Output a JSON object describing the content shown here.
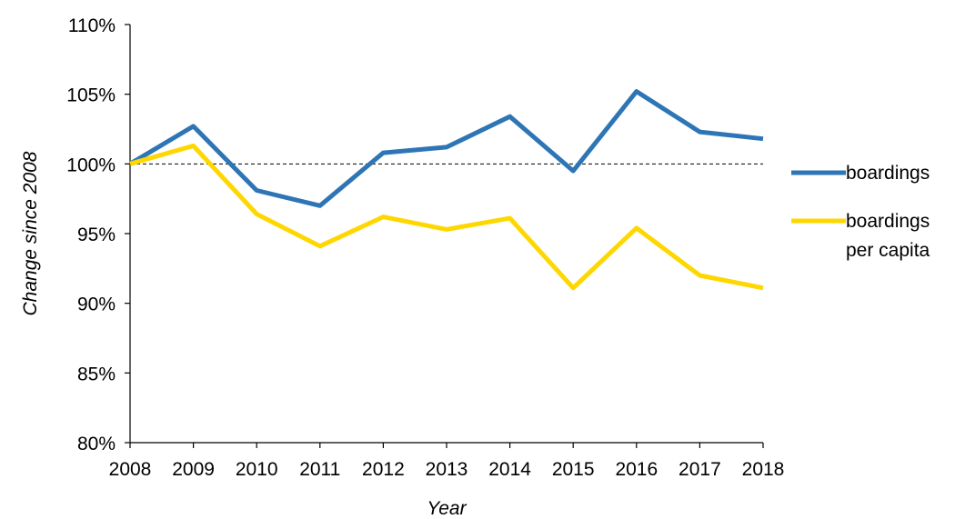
{
  "chart_data": {
    "type": "line",
    "title": "",
    "xlabel": "Year",
    "ylabel": "Change since 2008",
    "x": [
      "2008",
      "2009",
      "2010",
      "2011",
      "2012",
      "2013",
      "2014",
      "2015",
      "2016",
      "2017",
      "2018"
    ],
    "y_ticks": [
      "80%",
      "85%",
      "90%",
      "95%",
      "100%",
      "105%",
      "110%"
    ],
    "ylim": [
      80,
      110
    ],
    "y_unit": "%",
    "reference_line": 100,
    "grid": false,
    "legend_position": "right",
    "series": [
      {
        "name": "boardings",
        "color": "#2E75B6",
        "values": [
          100.0,
          102.7,
          98.1,
          97.0,
          100.8,
          101.2,
          103.4,
          99.5,
          105.2,
          102.3,
          101.8
        ]
      },
      {
        "name": "boardings per capita",
        "legend_lines": [
          "boardings",
          "per capita"
        ],
        "color": "#FFD700",
        "values": [
          100.0,
          101.3,
          96.4,
          94.1,
          96.2,
          95.3,
          96.1,
          91.1,
          95.4,
          92.0,
          91.1
        ]
      }
    ]
  }
}
